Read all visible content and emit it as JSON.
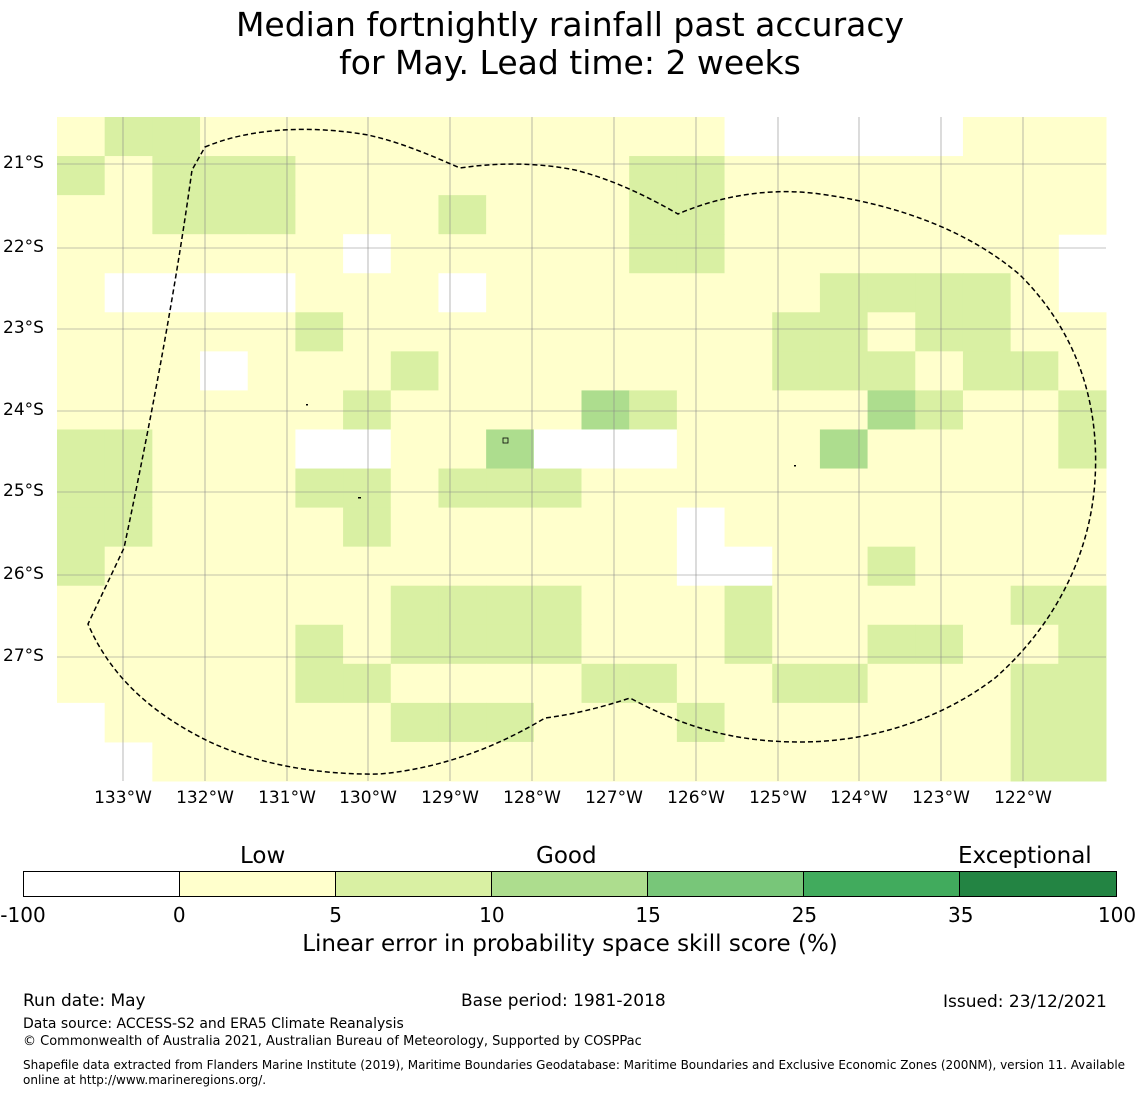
{
  "title_line1": "Median fortnightly rainfall past accuracy",
  "title_line2": "for May. Lead time: 2 weeks",
  "map": {
    "lat_labels": [
      "21°S",
      "22°S",
      "23°S",
      "24°S",
      "25°S",
      "26°S",
      "27°S"
    ],
    "lon_labels": [
      "133°W",
      "132°W",
      "131°W",
      "130°W",
      "129°W",
      "128°W",
      "127°W",
      "126°W",
      "125°W",
      "124°W",
      "123°W",
      "122°W"
    ],
    "cell_classes_legend": "0 = -100..0, 1 = 0..5, 2 = 5..10, 3 = 10..15, 9 = no data",
    "grid_rows": [
      "1221111111111100999111",
      "2122211111112211111111",
      "1122211121112211111111",
      "1111110111112211111119",
      "1000011101111111222219",
      "1111121111111112212211",
      "1110111211111112221221",
      "1111112111132111132112",
      "2211100113000111311112",
      "2211122122211111111111",
      "2211112111111011111111",
      "2111111111111001121111",
      "1111111222211121111122",
      "1111121222211121122112",
      "1111122111122112211122",
      "0111111222111211111122",
      "9911111111111111111122"
    ]
  },
  "colorbar": {
    "tick_labels": [
      "-100",
      "0",
      "5",
      "10",
      "15",
      "25",
      "35",
      "100"
    ],
    "colors": [
      "#ffffff",
      "#ffffcc",
      "#d9f0a3",
      "#addd8e",
      "#78c679",
      "#41ab5d",
      "#238443"
    ],
    "category_low": "Low",
    "category_good": "Good",
    "category_exceptional": "Exceptional",
    "axis_label": "Linear error in probability space skill score (%)"
  },
  "footer": {
    "run_date": "Run date: May",
    "base_period": "Base period: 1981-2018",
    "issued": "Issued: 23/12/2021",
    "data_source": "Data source: ACCESS-S2 and ERA5 Climate Reanalysis",
    "copyright": "© Commonwealth of Australia 2021, Australian Bureau of Meteorology, Supported by COSPPac",
    "shapefile_note": "Shapefile data extracted from Flanders Marine Institute (2019), Maritime Boundaries Geodatabase: Maritime Boundaries and Exclusive Economic Zones (200NM), version 11. Available online at http://www.marineregions.org/."
  }
}
